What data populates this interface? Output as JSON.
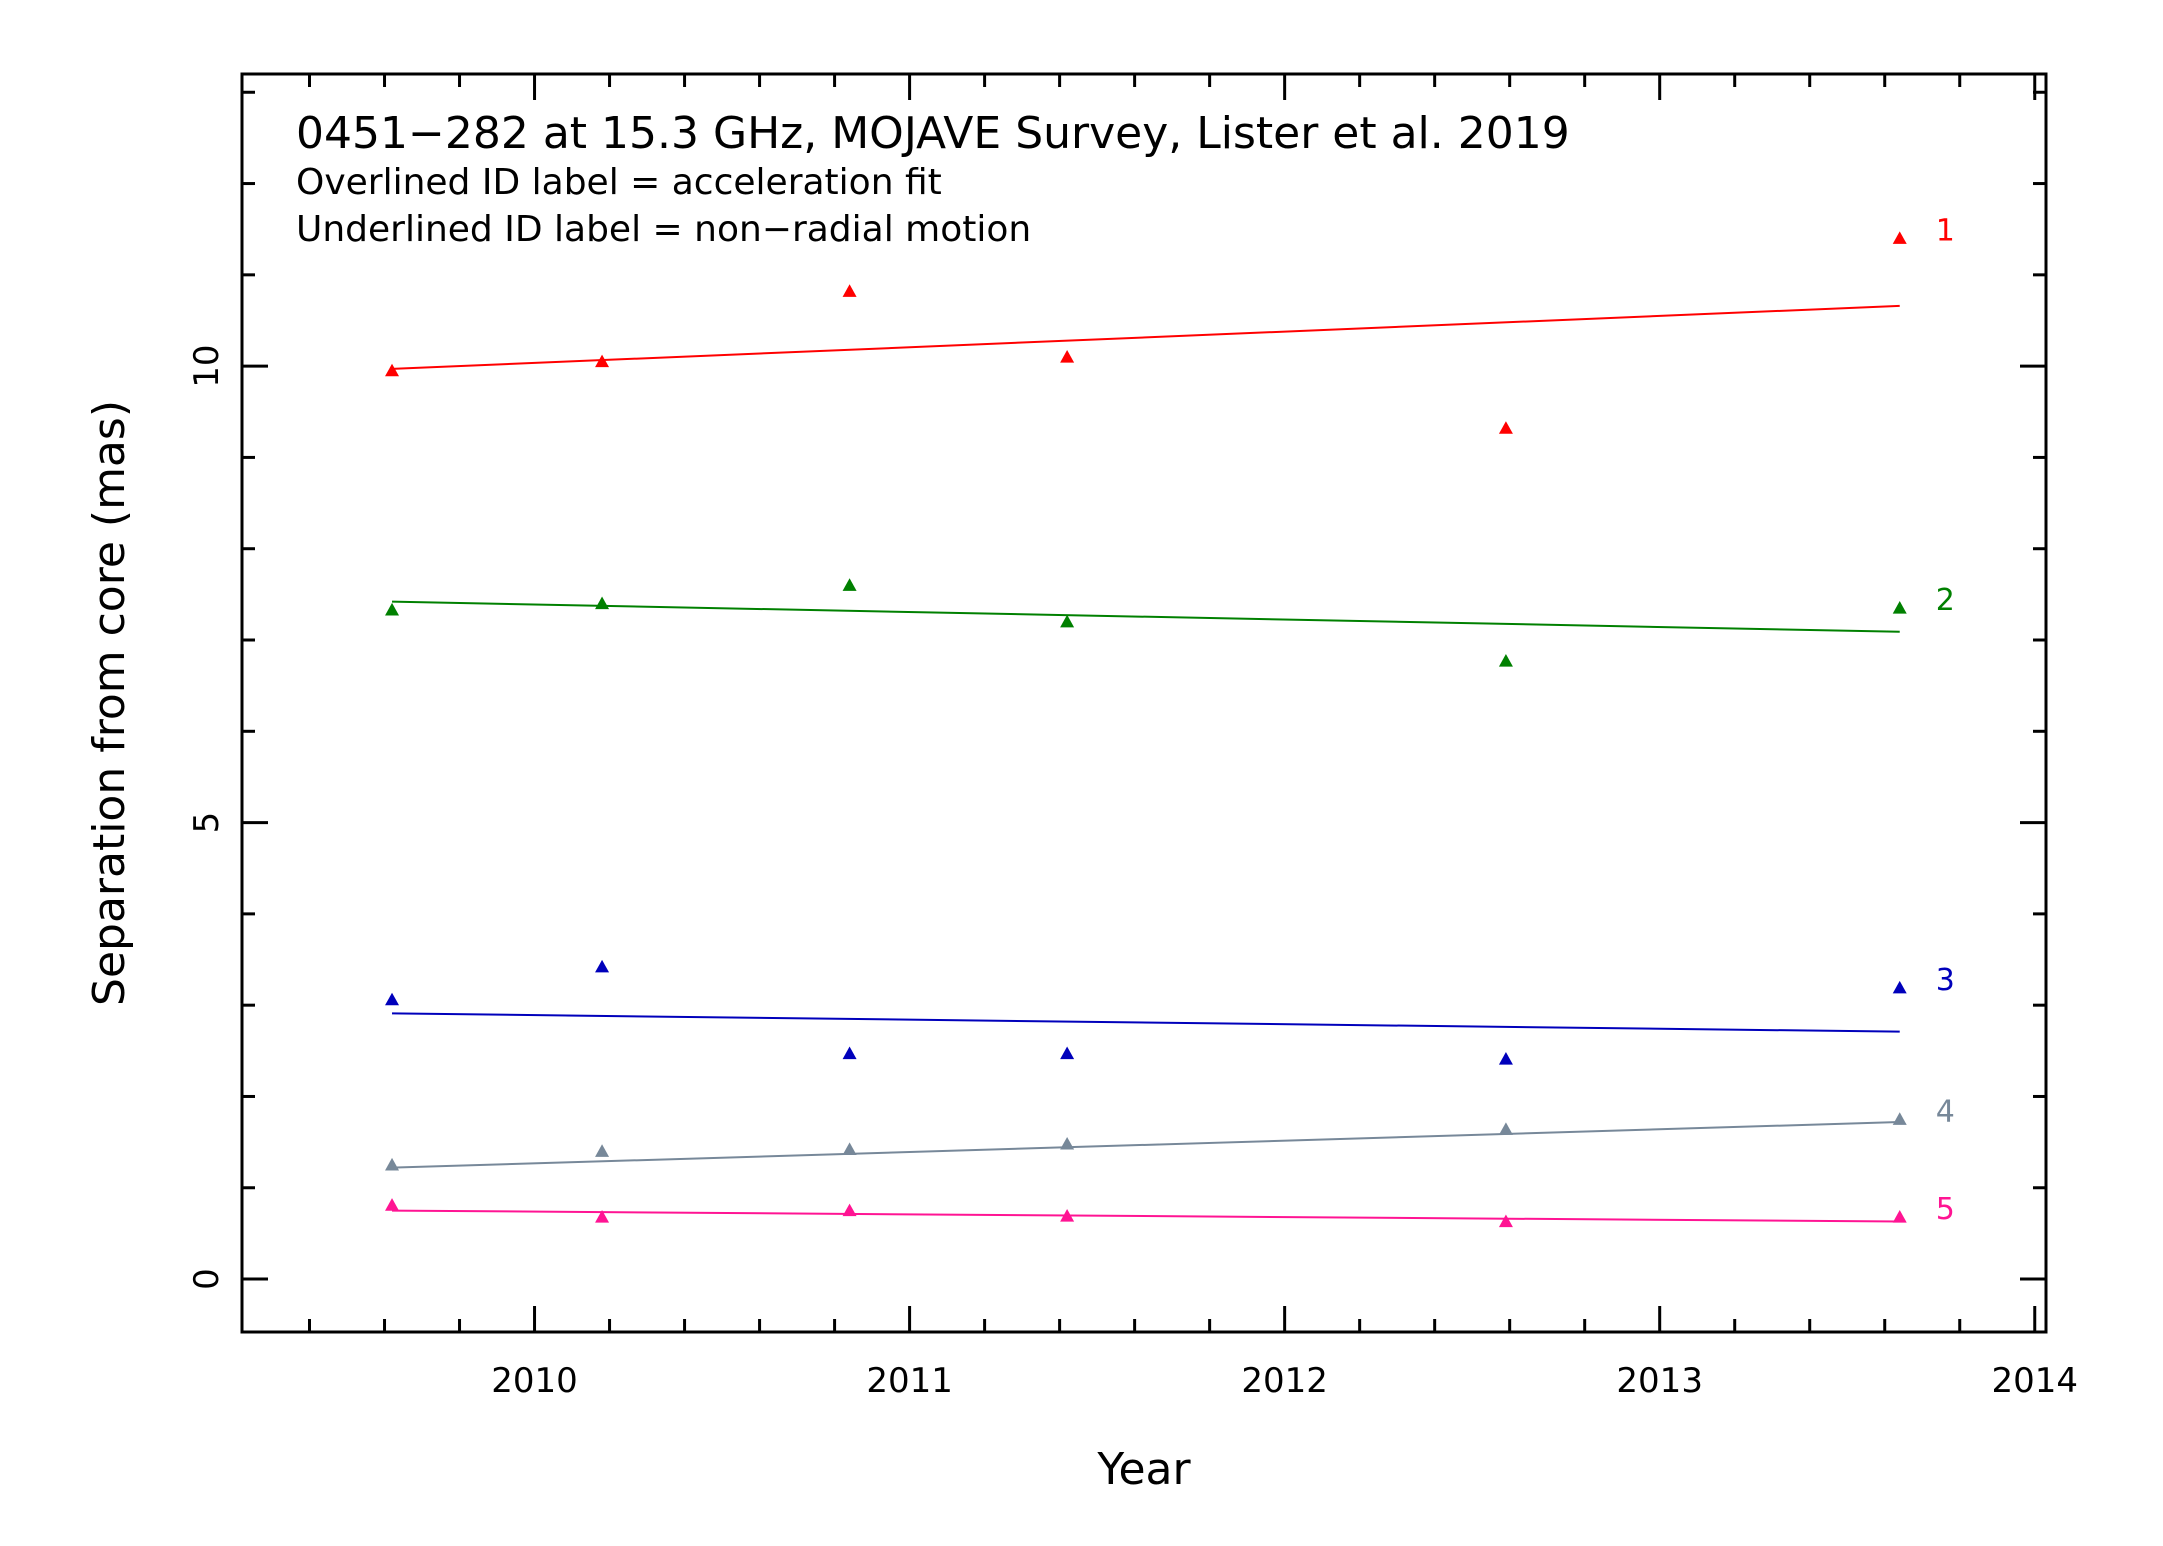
{
  "chart_data": {
    "type": "scatter",
    "title": "0451−282 at 15.3 GHz, MOJAVE Survey, Lister et al. 2019",
    "subtitles": [
      "Overlined ID label = acceleration fit",
      "Underlined ID label = non−radial motion"
    ],
    "xlabel": "Year",
    "ylabel": "Separation from core (mas)",
    "xlim": [
      2009.22,
      2014.03
    ],
    "ylim": [
      -0.58,
      13.2
    ],
    "x_ticks": [
      2010,
      2011,
      2012,
      2013,
      2014
    ],
    "x_tick_labels": [
      "2010",
      "2011",
      "2012",
      "2013",
      "2014"
    ],
    "y_ticks": [
      0,
      5,
      10
    ],
    "y_tick_labels": [
      "0",
      "5",
      "10"
    ],
    "grid": false,
    "legend": "none",
    "marker": "triangle",
    "epochs": [
      2009.62,
      2010.18,
      2010.84,
      2011.42,
      2012.59,
      2013.64
    ],
    "series": [
      {
        "name": "1",
        "color": "#ff0000",
        "values": [
          9.95,
          10.05,
          10.82,
          10.1,
          9.32,
          11.4
        ],
        "fit": [
          [
            2009.62,
            9.97
          ],
          [
            2013.64,
            10.66
          ]
        ]
      },
      {
        "name": "2",
        "color": "#008000",
        "values": [
          7.33,
          7.4,
          7.6,
          7.2,
          6.77,
          7.35
        ],
        "fit": [
          [
            2009.62,
            7.42
          ],
          [
            2013.64,
            7.09
          ]
        ]
      },
      {
        "name": "3",
        "color": "#0000bb",
        "values": [
          3.06,
          3.42,
          2.47,
          2.47,
          2.41,
          3.19
        ],
        "fit": [
          [
            2009.62,
            2.91
          ],
          [
            2013.64,
            2.71
          ]
        ]
      },
      {
        "name": "4",
        "color": "#778899",
        "values": [
          1.25,
          1.4,
          1.42,
          1.48,
          1.64,
          1.75
        ],
        "fit": [
          [
            2009.62,
            1.22
          ],
          [
            2013.64,
            1.72
          ]
        ]
      },
      {
        "name": "5",
        "color": "#ff1493",
        "values": [
          0.81,
          0.68,
          0.75,
          0.69,
          0.63,
          0.68
        ],
        "fit": [
          [
            2009.62,
            0.75
          ],
          [
            2013.64,
            0.63
          ]
        ]
      }
    ]
  }
}
